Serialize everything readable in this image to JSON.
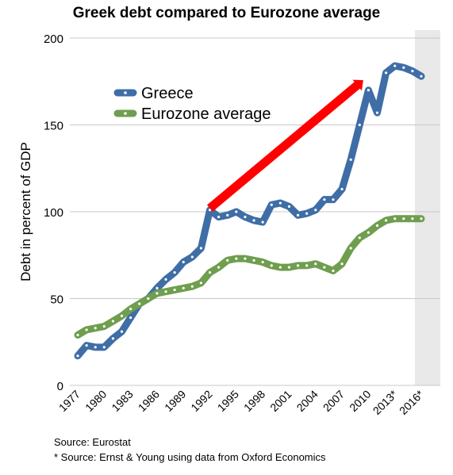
{
  "chart_data": {
    "type": "line",
    "title": "Greek debt compared to Eurozone average",
    "ylabel": "Debt in percent of GDP",
    "xlabel": "",
    "ylim": [
      0,
      200
    ],
    "yticks": [
      0,
      50,
      100,
      150,
      200
    ],
    "xlim": [
      1977,
      2017
    ],
    "xticks": [
      "1977",
      "1980",
      "1983",
      "1986",
      "1989",
      "1992",
      "1995",
      "1998",
      "2001",
      "2004",
      "2007",
      "2010",
      "2013*",
      "2016*"
    ],
    "grid": "horizontal",
    "legend": "upper-left",
    "forecast_shaded_from": 2015,
    "series": [
      {
        "name": "Greece",
        "color": "#3f6ea6",
        "x": [
          1977,
          1978,
          1979,
          1980,
          1981,
          1982,
          1983,
          1984,
          1985,
          1986,
          1987,
          1988,
          1989,
          1990,
          1991,
          1992,
          1993,
          1994,
          1995,
          1996,
          1997,
          1998,
          1999,
          2000,
          2001,
          2002,
          2003,
          2004,
          2005,
          2006,
          2007,
          2008,
          2009,
          2010,
          2011,
          2012,
          2013,
          2014,
          2015,
          2016
        ],
        "values": [
          17,
          23,
          22,
          22,
          27,
          31,
          39,
          47,
          50,
          56,
          61,
          65,
          71,
          74,
          79,
          101,
          97,
          98,
          100,
          97,
          95,
          94,
          104,
          105,
          103,
          98,
          99,
          101,
          107,
          107,
          113,
          130,
          150,
          170,
          157,
          180,
          184,
          183,
          181,
          178
        ]
      },
      {
        "name": "Eurozone average",
        "color": "#6f9e4f",
        "x": [
          1977,
          1978,
          1979,
          1980,
          1981,
          1982,
          1983,
          1984,
          1985,
          1986,
          1987,
          1988,
          1989,
          1990,
          1991,
          1992,
          1993,
          1994,
          1995,
          1996,
          1997,
          1998,
          1999,
          2000,
          2001,
          2002,
          2003,
          2004,
          2005,
          2006,
          2007,
          2008,
          2009,
          2010,
          2011,
          2012,
          2013,
          2014,
          2015,
          2016
        ],
        "values": [
          29,
          32,
          33,
          34,
          37,
          40,
          44,
          47,
          50,
          53,
          54,
          55,
          56,
          57,
          59,
          65,
          68,
          72,
          73,
          73,
          72,
          71,
          69,
          68,
          68,
          69,
          69,
          70,
          68,
          66,
          70,
          79,
          85,
          88,
          92,
          95,
          96,
          96,
          96,
          96
        ]
      }
    ],
    "annotations": [
      {
        "type": "trend-arrow",
        "color": "#ff0000",
        "from": [
          1992,
          102
        ],
        "to": [
          2009,
          174
        ]
      }
    ],
    "sources": [
      "Source: Eurostat",
      "* Source: Ernst & Young using data from Oxford Economics"
    ]
  }
}
